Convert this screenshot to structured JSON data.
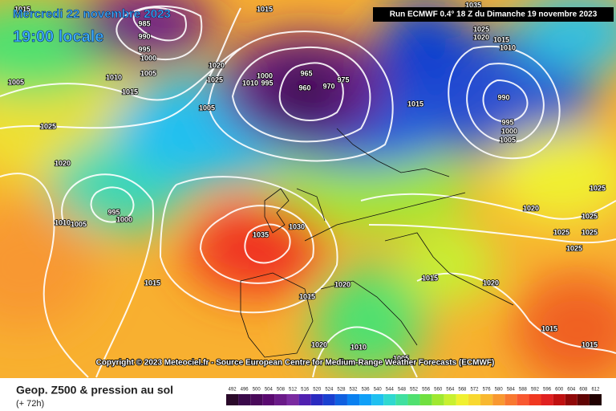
{
  "header": {
    "date": "Mercredi 22 novembre 2023",
    "time": "19:00 locale",
    "run": "Run ECMWF 0.4° 18 Z du Dimanche 19 novembre 2023"
  },
  "copyright": "Copyright © 2023 Meteociel.fr - Source European Centre for Medium-Range Weather Forecasts (ECMWF)",
  "footer": {
    "title": "Geop. Z500 & pression au sol",
    "lead": "(+ 72h)"
  },
  "isobars": [
    1015,
    1015,
    985,
    990,
    995,
    1000,
    1005,
    1010,
    1015,
    1005,
    1020,
    1025,
    1005,
    1000,
    1010,
    995,
    965,
    960,
    970,
    975,
    1015,
    1035,
    1025,
    1020,
    1015,
    1010,
    990,
    995,
    1000,
    1005,
    1025,
    1020,
    995,
    1000,
    1010,
    1005,
    1035,
    1030,
    1020,
    1025,
    1025,
    1025,
    1025,
    1025,
    1015,
    1020,
    1015,
    1020,
    1015,
    1015,
    1015,
    1020,
    1010,
    1005
  ],
  "legend": {
    "scale": [
      492,
      496,
      500,
      504,
      508,
      512,
      516,
      520,
      524,
      528,
      532,
      536,
      540,
      544,
      548,
      552,
      556,
      560,
      564,
      568,
      572,
      576,
      580,
      584,
      588,
      592,
      596,
      600,
      604,
      608,
      612
    ],
    "colors": [
      "#2a0a2a",
      "#3a0a4a",
      "#4a0a5a",
      "#5a0a70",
      "#6a1a88",
      "#7a2aa0",
      "#5020b0",
      "#2a2ac0",
      "#1a40d0",
      "#1060e0",
      "#0a80f0",
      "#10a0f8",
      "#20c0f0",
      "#30d8d0",
      "#40e0a0",
      "#50e070",
      "#70e040",
      "#a0e830",
      "#c8f030",
      "#f0f030",
      "#f8d830",
      "#f8b830",
      "#f89830",
      "#f87830",
      "#f85830",
      "#f03820",
      "#e02020",
      "#c01010",
      "#900808",
      "#600404",
      "#200000"
    ]
  }
}
